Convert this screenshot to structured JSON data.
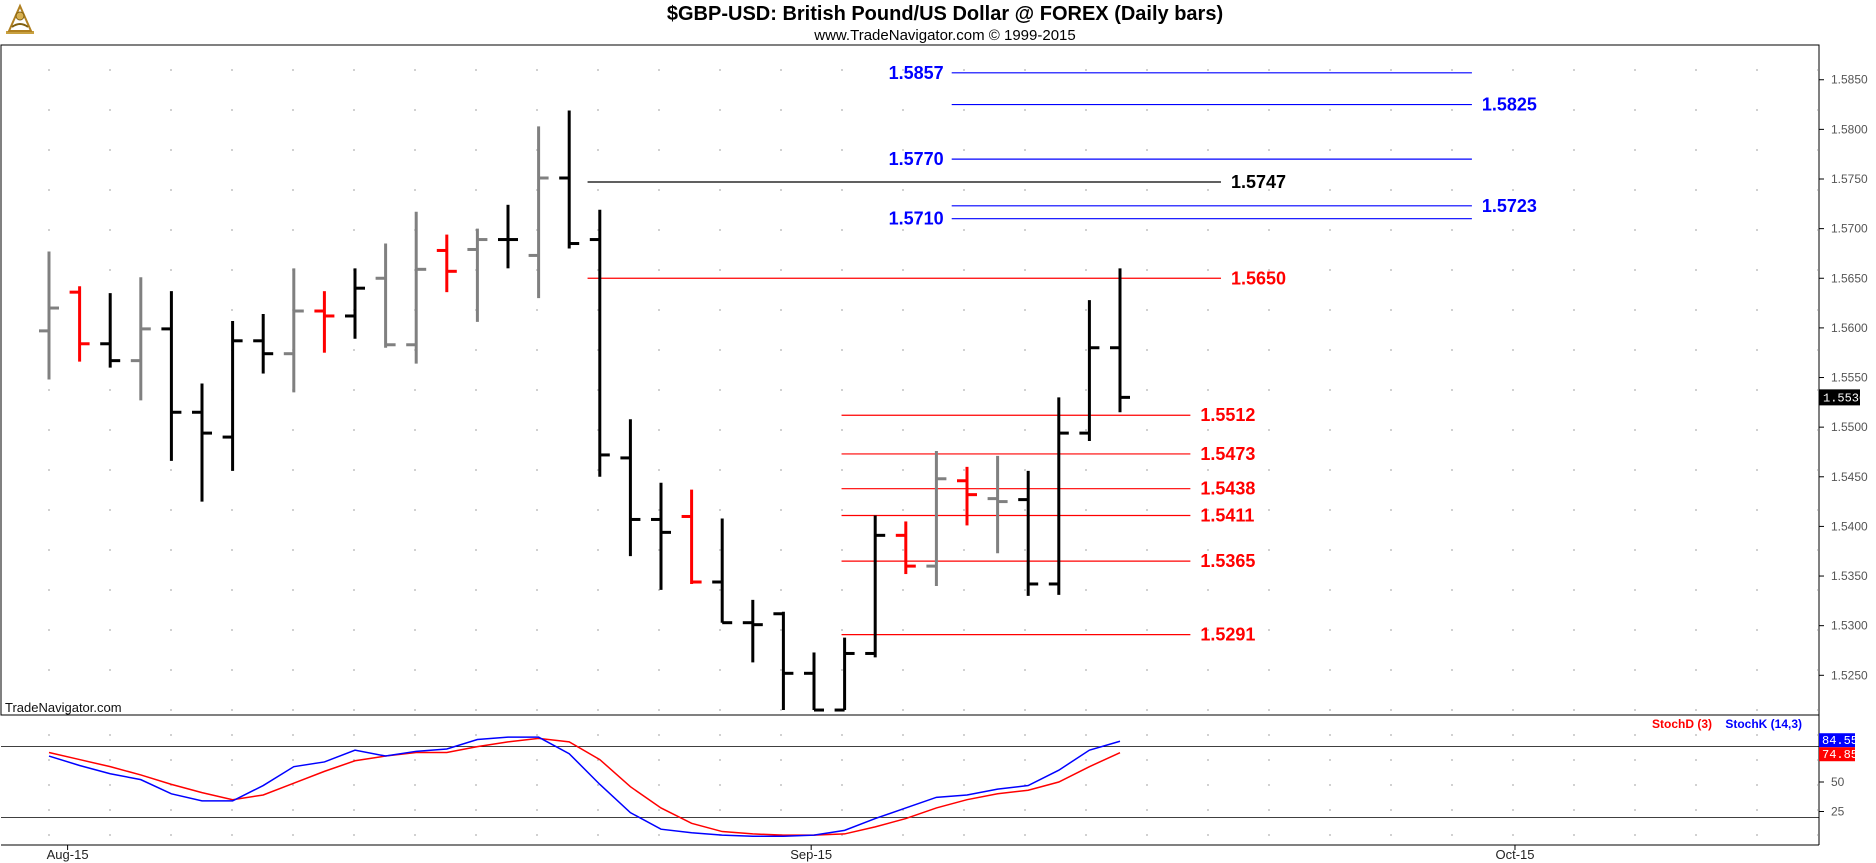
{
  "header": {
    "title": "$GBP-USD:  British Pound/US Dollar @ FOREX  (Daily bars)",
    "subtitle": "www.TradeNavigator.com © 1999-2015",
    "logo_icon": "sextant-logo-icon"
  },
  "watermark": "TradeNavigator.com",
  "colors": {
    "up": "#000000",
    "down": "#ff0000",
    "neutral": "#808080",
    "blue_level": "#0000ff",
    "red_level": "#ff0000",
    "black_level": "#000000",
    "stoch_d": "#ff0000",
    "stoch_k": "#0000ff"
  },
  "chart_data": [
    {
      "type": "ohlc",
      "title": "$GBP-USD:  British Pound/US Dollar @ FOREX  (Daily bars)",
      "x_ticks": [
        "Aug-15",
        "Sep-15",
        "Oct-15"
      ],
      "ylim": [
        1.521,
        1.5885
      ],
      "y_ticks": [
        "1.5250",
        "1.5300",
        "1.5350",
        "1.5400",
        "1.5450",
        "1.5500",
        "1.5550",
        "1.5600",
        "1.5650",
        "1.5700",
        "1.5750",
        "1.5800",
        "1.5850"
      ],
      "last_price": "1.5530",
      "grid": true,
      "bars": [
        {
          "o": 1.5597,
          "h": 1.5677,
          "l": 1.5548,
          "c": 1.562,
          "color": "neutral"
        },
        {
          "o": 1.5636,
          "h": 1.5642,
          "l": 1.5566,
          "c": 1.5584,
          "color": "down"
        },
        {
          "o": 1.5584,
          "h": 1.5635,
          "l": 1.556,
          "c": 1.5567,
          "color": "up"
        },
        {
          "o": 1.5567,
          "h": 1.5651,
          "l": 1.5527,
          "c": 1.5599,
          "color": "neutral"
        },
        {
          "o": 1.5599,
          "h": 1.5637,
          "l": 1.5466,
          "c": 1.5515,
          "color": "up"
        },
        {
          "o": 1.5515,
          "h": 1.5544,
          "l": 1.5425,
          "c": 1.5494,
          "color": "up"
        },
        {
          "o": 1.549,
          "h": 1.5607,
          "l": 1.5456,
          "c": 1.5587,
          "color": "up"
        },
        {
          "o": 1.5587,
          "h": 1.5614,
          "l": 1.5554,
          "c": 1.5574,
          "color": "up"
        },
        {
          "o": 1.5574,
          "h": 1.566,
          "l": 1.5535,
          "c": 1.5617,
          "color": "neutral"
        },
        {
          "o": 1.5617,
          "h": 1.5637,
          "l": 1.5575,
          "c": 1.5612,
          "color": "down"
        },
        {
          "o": 1.5612,
          "h": 1.566,
          "l": 1.5589,
          "c": 1.564,
          "color": "up"
        },
        {
          "o": 1.565,
          "h": 1.5685,
          "l": 1.558,
          "c": 1.5583,
          "color": "neutral"
        },
        {
          "o": 1.5583,
          "h": 1.5717,
          "l": 1.5564,
          "c": 1.5659,
          "color": "neutral"
        },
        {
          "o": 1.5678,
          "h": 1.5694,
          "l": 1.5636,
          "c": 1.5657,
          "color": "down"
        },
        {
          "o": 1.5679,
          "h": 1.57,
          "l": 1.5606,
          "c": 1.5689,
          "color": "neutral"
        },
        {
          "o": 1.5689,
          "h": 1.5724,
          "l": 1.566,
          "c": 1.5689,
          "color": "up"
        },
        {
          "o": 1.5673,
          "h": 1.5803,
          "l": 1.563,
          "c": 1.5751,
          "color": "neutral"
        },
        {
          "o": 1.5751,
          "h": 1.5819,
          "l": 1.568,
          "c": 1.5685,
          "color": "up"
        },
        {
          "o": 1.5689,
          "h": 1.5719,
          "l": 1.545,
          "c": 1.5472,
          "color": "up"
        },
        {
          "o": 1.5469,
          "h": 1.5508,
          "l": 1.537,
          "c": 1.5407,
          "color": "up"
        },
        {
          "o": 1.5407,
          "h": 1.5444,
          "l": 1.5336,
          "c": 1.5394,
          "color": "up"
        },
        {
          "o": 1.541,
          "h": 1.5437,
          "l": 1.5342,
          "c": 1.5344,
          "color": "down"
        },
        {
          "o": 1.5344,
          "h": 1.5408,
          "l": 1.5303,
          "c": 1.5303,
          "color": "up"
        },
        {
          "o": 1.5303,
          "h": 1.5326,
          "l": 1.5263,
          "c": 1.5301,
          "color": "up"
        },
        {
          "o": 1.5312,
          "h": 1.5314,
          "l": 1.5215,
          "c": 1.5252,
          "color": "up"
        },
        {
          "o": 1.5252,
          "h": 1.5273,
          "l": 1.5215,
          "c": 1.5215,
          "color": "up"
        },
        {
          "o": 1.5215,
          "h": 1.5288,
          "l": 1.5215,
          "c": 1.5272,
          "color": "up"
        },
        {
          "o": 1.5272,
          "h": 1.5411,
          "l": 1.5268,
          "c": 1.5391,
          "color": "up"
        },
        {
          "o": 1.5391,
          "h": 1.5405,
          "l": 1.5352,
          "c": 1.536,
          "color": "down"
        },
        {
          "o": 1.536,
          "h": 1.5476,
          "l": 1.534,
          "c": 1.5448,
          "color": "neutral"
        },
        {
          "o": 1.5446,
          "h": 1.546,
          "l": 1.5401,
          "c": 1.5432,
          "color": "down"
        },
        {
          "o": 1.5428,
          "h": 1.5471,
          "l": 1.5373,
          "c": 1.5425,
          "color": "neutral"
        },
        {
          "o": 1.5427,
          "h": 1.5456,
          "l": 1.533,
          "c": 1.5342,
          "color": "up"
        },
        {
          "o": 1.5342,
          "h": 1.553,
          "l": 1.5331,
          "c": 1.5494,
          "color": "up"
        },
        {
          "o": 1.5494,
          "h": 1.5628,
          "l": 1.5486,
          "c": 1.558,
          "color": "up"
        },
        {
          "o": 1.558,
          "h": 1.566,
          "l": 1.5515,
          "c": 1.553,
          "color": "up"
        }
      ],
      "levels": [
        {
          "value": 1.5857,
          "label": "1.5857",
          "color": "blue_level",
          "from_bar": 29.5,
          "to_bar": 46.5,
          "label_side": "left"
        },
        {
          "value": 1.5825,
          "label": "1.5825",
          "color": "blue_level",
          "from_bar": 29.5,
          "to_bar": 46.5,
          "label_side": "right"
        },
        {
          "value": 1.577,
          "label": "1.5770",
          "color": "blue_level",
          "from_bar": 29.5,
          "to_bar": 46.5,
          "label_side": "left"
        },
        {
          "value": 1.5747,
          "label": "1.5747",
          "color": "black_level",
          "from_bar": 17.6,
          "to_bar": 38.3,
          "label_side": "right"
        },
        {
          "value": 1.5723,
          "label": "1.5723",
          "color": "blue_level",
          "from_bar": 29.5,
          "to_bar": 46.5,
          "label_side": "right"
        },
        {
          "value": 1.571,
          "label": "1.5710",
          "color": "blue_level",
          "from_bar": 29.5,
          "to_bar": 46.5,
          "label_side": "left"
        },
        {
          "value": 1.565,
          "label": "1.5650",
          "color": "red_level",
          "from_bar": 17.6,
          "to_bar": 38.3,
          "label_side": "right"
        },
        {
          "value": 1.5512,
          "label": "1.5512",
          "color": "red_level",
          "from_bar": 25.9,
          "to_bar": 37.3,
          "label_side": "right"
        },
        {
          "value": 1.5473,
          "label": "1.5473",
          "color": "red_level",
          "from_bar": 25.9,
          "to_bar": 37.3,
          "label_side": "right"
        },
        {
          "value": 1.5438,
          "label": "1.5438",
          "color": "red_level",
          "from_bar": 25.9,
          "to_bar": 37.3,
          "label_side": "right"
        },
        {
          "value": 1.5411,
          "label": "1.5411",
          "color": "red_level",
          "from_bar": 25.9,
          "to_bar": 37.3,
          "label_side": "right"
        },
        {
          "value": 1.5365,
          "label": "1.5365",
          "color": "red_level",
          "from_bar": 25.9,
          "to_bar": 37.3,
          "label_side": "right"
        },
        {
          "value": 1.5291,
          "label": "1.5291",
          "color": "red_level",
          "from_bar": 25.9,
          "to_bar": 37.3,
          "label_side": "right"
        }
      ]
    },
    {
      "type": "line",
      "ylim": [
        0,
        100
      ],
      "y_ticks": [
        "25",
        "50"
      ],
      "reference_lines": [
        20,
        80
      ],
      "legend": [
        "StochD (3)",
        "StochK (14,3)"
      ],
      "legend_placement": "top-right",
      "last_values": {
        "stoch_k": "84.55",
        "stoch_d": "74.85"
      },
      "series": [
        {
          "name": "StochK (14,3)",
          "color": "stoch_k",
          "values": [
            72,
            64,
            57,
            52,
            40,
            34,
            34,
            47,
            63,
            67,
            77,
            72,
            76,
            78,
            86,
            88,
            88,
            74,
            48,
            24,
            10,
            7,
            5,
            4,
            4,
            5,
            9,
            19,
            28,
            37,
            39,
            44,
            47,
            60,
            77,
            84.55
          ]
        },
        {
          "name": "StochD (3)",
          "color": "stoch_d",
          "values": [
            75,
            69,
            63,
            56,
            48,
            41,
            35,
            39,
            49,
            59,
            68,
            72,
            75,
            75,
            80,
            84,
            87,
            84,
            69,
            46,
            28,
            15,
            8,
            6,
            5,
            5,
            6,
            12,
            19,
            28,
            35,
            40,
            43,
            50,
            63,
            74.85
          ]
        }
      ]
    }
  ]
}
